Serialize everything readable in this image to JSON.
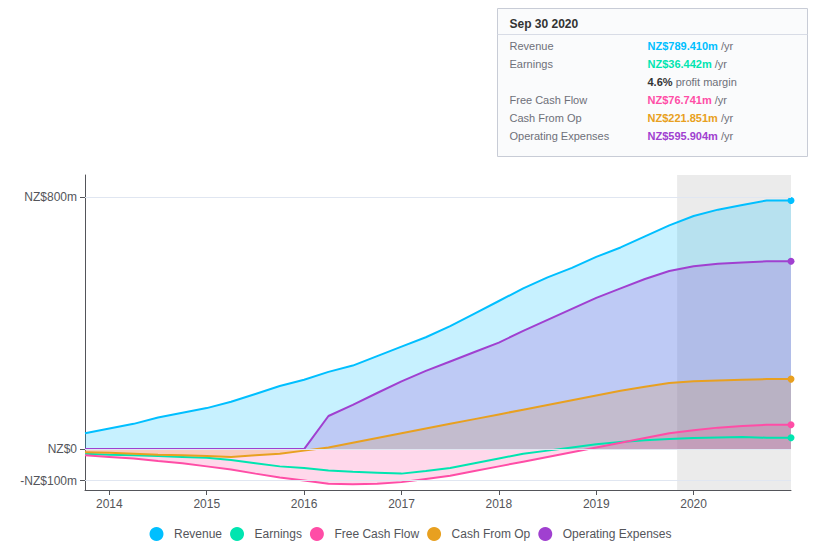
{
  "chart_data": {
    "type": "line",
    "x": [
      2013.75,
      2014.0,
      2014.25,
      2014.5,
      2014.75,
      2015.0,
      2015.25,
      2015.5,
      2015.75,
      2016.0,
      2016.25,
      2016.5,
      2016.75,
      2017.0,
      2017.25,
      2017.5,
      2017.75,
      2018.0,
      2018.25,
      2018.5,
      2018.75,
      2019.0,
      2019.25,
      2019.5,
      2019.75,
      2020.0,
      2020.25,
      2020.5,
      2020.75,
      2021.0
    ],
    "series": [
      {
        "name": "Revenue",
        "type": "area",
        "color": "#00bfff",
        "values": [
          50,
          65,
          80,
          100,
          115,
          130,
          150,
          175,
          200,
          220,
          245,
          265,
          295,
          325,
          355,
          390,
          430,
          470,
          510,
          545,
          575,
          610,
          640,
          675,
          710,
          740,
          760,
          775,
          789,
          789
        ]
      },
      {
        "name": "Earnings",
        "type": "line",
        "color": "#00e5b0",
        "values": [
          -15,
          -18,
          -20,
          -22,
          -25,
          -28,
          -35,
          -45,
          -55,
          -60,
          -68,
          -72,
          -75,
          -78,
          -70,
          -60,
          -45,
          -30,
          -15,
          -5,
          5,
          15,
          22,
          28,
          32,
          35,
          37,
          38,
          36,
          36
        ]
      },
      {
        "name": "Free Cash Flow",
        "type": "area",
        "color": "#ff4da6",
        "values": [
          -20,
          -25,
          -30,
          -38,
          -45,
          -55,
          -65,
          -78,
          -90,
          -100,
          -110,
          -112,
          -110,
          -105,
          -95,
          -85,
          -70,
          -55,
          -40,
          -25,
          -10,
          5,
          20,
          35,
          50,
          60,
          68,
          73,
          77,
          77
        ]
      },
      {
        "name": "Cash From Op",
        "type": "area",
        "color": "#e8a020",
        "values": [
          -10,
          -12,
          -15,
          -18,
          -20,
          -22,
          -25,
          -20,
          -15,
          -5,
          5,
          20,
          35,
          50,
          65,
          80,
          95,
          110,
          125,
          140,
          155,
          170,
          185,
          198,
          210,
          215,
          218,
          220,
          222,
          222
        ]
      },
      {
        "name": "Operating Expenses",
        "type": "area",
        "color": "#a040d0",
        "values": [
          0,
          0,
          0,
          0,
          0,
          0,
          0,
          0,
          0,
          0,
          105,
          140,
          178,
          215,
          248,
          278,
          308,
          338,
          375,
          410,
          445,
          480,
          510,
          540,
          565,
          580,
          588,
          592,
          596,
          596
        ]
      }
    ],
    "xlim": [
      2013.75,
      2021.0
    ],
    "xticks": [
      2014,
      2015,
      2016,
      2017,
      2018,
      2019,
      2020
    ],
    "ylim": [
      -130,
      870
    ],
    "yticks": [
      {
        "value": -100,
        "label": "-NZ$100m"
      },
      {
        "value": 0,
        "label": "NZ$0"
      },
      {
        "value": 800,
        "label": "NZ$800m"
      }
    ],
    "shaded_from": 2019.83,
    "grid": true,
    "legend": "bottom",
    "info_box": {
      "title": "Sep 30 2020",
      "rows": [
        {
          "label": "Revenue",
          "value": "NZ$789.410m",
          "unit": "/yr",
          "color": "#00bfff"
        },
        {
          "label": "Earnings",
          "value": "NZ$36.442m",
          "unit": "/yr",
          "color": "#00e5b0"
        },
        {
          "value": "4.6%",
          "unit": "profit margin"
        },
        {
          "label": "Free Cash Flow",
          "value": "NZ$76.741m",
          "unit": "/yr",
          "color": "#ff4da6"
        },
        {
          "label": "Cash From Op",
          "value": "NZ$221.851m",
          "unit": "/yr",
          "color": "#e8a020"
        },
        {
          "label": "Operating Expenses",
          "value": "NZ$595.904m",
          "unit": "/yr",
          "color": "#a040d0"
        }
      ]
    }
  }
}
